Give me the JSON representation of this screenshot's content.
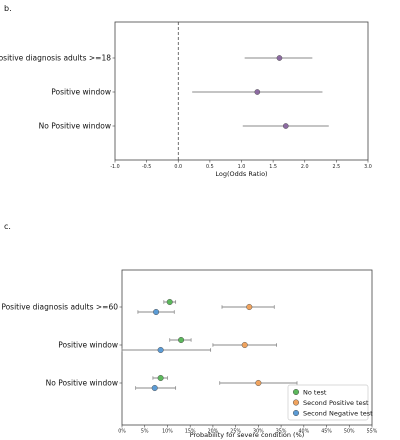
{
  "chart_data": [
    {
      "panel": "b.",
      "type": "scatter",
      "subtype": "forest-plot",
      "categories": [
        "Positive diagnosis adults >=18",
        "Positive window",
        "No Positive window"
      ],
      "series": [
        {
          "color": "#8c6aa1",
          "points": [
            {
              "category": "Positive diagnosis adults >=18",
              "x": 1.6,
              "ci": [
                1.05,
                2.12
              ]
            },
            {
              "category": "Positive window",
              "x": 1.25,
              "ci": [
                0.22,
                2.28
              ]
            },
            {
              "category": "No Positive window",
              "x": 1.7,
              "ci": [
                1.02,
                2.38
              ]
            }
          ]
        }
      ],
      "xlabel": "Log(Odds Ratio)",
      "xlim": [
        -1.0,
        3.0
      ],
      "xticks": [
        "-1.0",
        "-0.5",
        "0.0",
        "0.5",
        "1.0",
        "1.5",
        "2.0",
        "2.5",
        "3.0"
      ],
      "reference_line": 0.0
    },
    {
      "panel": "c.",
      "type": "scatter",
      "subtype": "forest-plot",
      "categories": [
        "Positive diagnosis adults >=60",
        "Positive window",
        "No Positive window"
      ],
      "series": [
        {
          "name": "No test",
          "color": "#5cb85c",
          "points": [
            {
              "category": "Positive diagnosis adults >=60",
              "x": 10.5,
              "ci": [
                9.2,
                11.8
              ]
            },
            {
              "category": "Positive window",
              "x": 13.0,
              "ci": [
                10.5,
                15.2
              ]
            },
            {
              "category": "No Positive window",
              "x": 8.5,
              "ci": [
                6.8,
                10.0
              ]
            }
          ]
        },
        {
          "name": "Second Positive test",
          "color": "#f0a35e",
          "points": [
            {
              "category": "Positive diagnosis adults >=60",
              "x": 28.0,
              "ci": [
                22.0,
                33.5
              ]
            },
            {
              "category": "Positive window",
              "x": 27.0,
              "ci": [
                20.0,
                34.0
              ]
            },
            {
              "category": "No Positive window",
              "x": 30.0,
              "ci": [
                21.5,
                38.5
              ]
            }
          ]
        },
        {
          "name": "Second Negative test",
          "color": "#5b9bd5",
          "points": [
            {
              "category": "Positive diagnosis adults >=60",
              "x": 7.5,
              "ci": [
                3.5,
                11.5
              ]
            },
            {
              "category": "Positive window",
              "x": 8.5,
              "ci": [
                0.0,
                19.5
              ]
            },
            {
              "category": "No Positive window",
              "x": 7.2,
              "ci": [
                3.0,
                11.8
              ]
            }
          ]
        }
      ],
      "xlabel": "Probability for severe condition (%)",
      "xlim": [
        0,
        55
      ],
      "xticks": [
        "0%",
        "5%",
        "10%",
        "15%",
        "20%",
        "25%",
        "30%",
        "35%",
        "40%",
        "45%",
        "50%",
        "55%"
      ],
      "legend": "bottom-right"
    }
  ]
}
